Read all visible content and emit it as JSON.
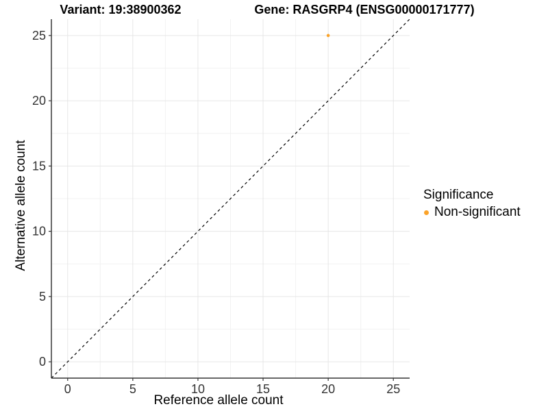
{
  "chart_data": {
    "type": "scatter",
    "titles": [
      "Variant: 19:38900362",
      "Gene: RASGRP4 (ENSG00000171777)"
    ],
    "xlabel": "Reference allele count",
    "ylabel": "Alternative allele count",
    "xlim": [
      -1.25,
      26.25
    ],
    "ylim": [
      -1.25,
      26.25
    ],
    "x_ticks": [
      0,
      5,
      10,
      15,
      20,
      25
    ],
    "y_ticks": [
      0,
      5,
      10,
      15,
      20,
      25
    ],
    "x_minor_ticks": [
      2.5,
      7.5,
      12.5,
      17.5,
      22.5
    ],
    "y_minor_ticks": [
      2.5,
      7.5,
      12.5,
      17.5,
      22.5
    ],
    "grid": "major and minor gridlines on white background",
    "reference_line": {
      "kind": "identity y=x",
      "style": "dashed",
      "color": "#000000"
    },
    "series": [
      {
        "name": "Non-significant",
        "color": "#FBA329",
        "points": [
          [
            20,
            25
          ]
        ]
      }
    ],
    "legend": {
      "title": "Significance",
      "position": "right",
      "entries": [
        {
          "label": "Non-significant",
          "color": "#FBA329"
        }
      ]
    },
    "colors": {
      "background": "#FFFFFF",
      "grid_major": "#E6E6E6",
      "grid_minor": "#F2F2F2",
      "axis": "#333333",
      "tick_label": "#333333",
      "text": "#000000"
    }
  }
}
